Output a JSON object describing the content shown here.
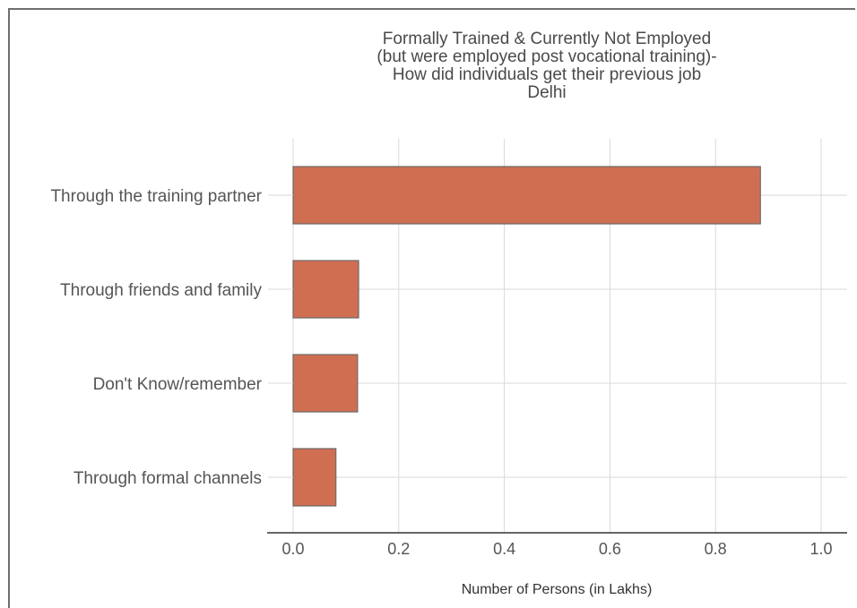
{
  "chart_data": {
    "type": "bar",
    "orientation": "horizontal",
    "title_lines": [
      "Formally Trained & Currently Not Employed",
      "(but were employed post vocational training)-",
      "How did individuals get their previous job",
      "Delhi"
    ],
    "xlabel": "Number of Persons (in Lakhs)",
    "ylabel": "",
    "categories": [
      "Through the training partner",
      "Through friends and family",
      "Don't Know/remember",
      "Through formal channels"
    ],
    "values": [
      0.885,
      0.124,
      0.122,
      0.081
    ],
    "xlim": [
      0,
      1.0
    ],
    "xticks": [
      "0.0",
      "0.2",
      "0.4",
      "0.6",
      "0.8",
      "1.0"
    ],
    "grid": true,
    "colors": {
      "bar": "#d06e52",
      "bar_edge": "#6b6b6b",
      "grid": "#d9d9d9"
    }
  }
}
